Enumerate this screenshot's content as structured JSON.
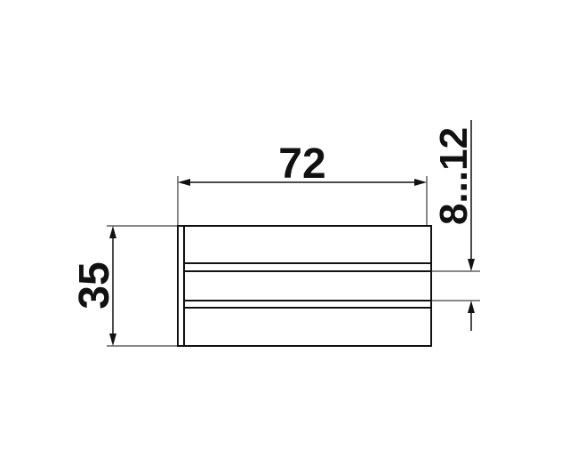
{
  "dimensions": {
    "width_label": "72",
    "height_label": "35",
    "range_label": "8...12"
  },
  "colors": {
    "line": "#111111",
    "background": "#ffffff"
  }
}
